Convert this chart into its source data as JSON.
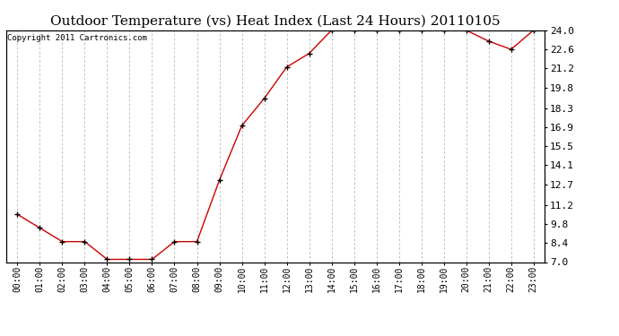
{
  "title": "Outdoor Temperature (vs) Heat Index (Last 24 Hours) 20110105",
  "copyright_text": "Copyright 2011 Cartronics.com",
  "x_labels": [
    "00:00",
    "01:00",
    "02:00",
    "03:00",
    "04:00",
    "05:00",
    "06:00",
    "07:00",
    "08:00",
    "09:00",
    "10:00",
    "11:00",
    "12:00",
    "13:00",
    "14:00",
    "15:00",
    "16:00",
    "17:00",
    "18:00",
    "19:00",
    "20:00",
    "21:00",
    "22:00",
    "23:00"
  ],
  "y_values": [
    10.5,
    9.5,
    8.5,
    8.5,
    7.2,
    7.2,
    7.2,
    8.5,
    8.5,
    13.0,
    17.0,
    19.0,
    21.3,
    22.3,
    24.0,
    24.0,
    24.0,
    24.0,
    24.0,
    24.0,
    24.0,
    23.2,
    22.6,
    24.0
  ],
  "ylim_min": 7.0,
  "ylim_max": 24.0,
  "yticks": [
    7.0,
    8.4,
    9.8,
    11.2,
    12.7,
    14.1,
    15.5,
    16.9,
    18.3,
    19.8,
    21.2,
    22.6,
    24.0
  ],
  "line_color": "#cc0000",
  "marker": "+",
  "marker_size": 5,
  "marker_color": "#000000",
  "bg_color": "#ffffff",
  "grid_color": "#aaaaaa",
  "title_fontsize": 11,
  "copyright_fontsize": 6.5,
  "tick_fontsize": 7,
  "ylabel_right_fontsize": 8
}
